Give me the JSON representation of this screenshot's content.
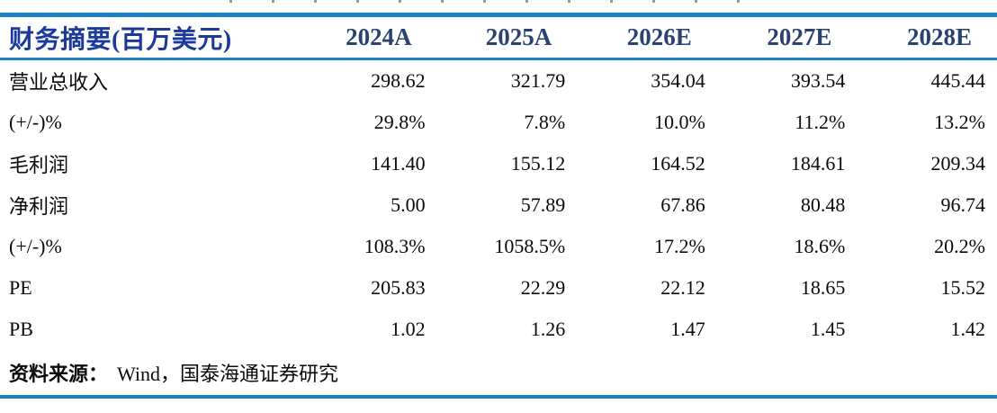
{
  "table": {
    "title": "财务摘要(百万美元)",
    "columns": [
      "2024A",
      "2025A",
      "2026E",
      "2027E",
      "2028E"
    ],
    "rows": [
      {
        "label": "营业总收入",
        "values": [
          "298.62",
          "321.79",
          "354.04",
          "393.54",
          "445.44"
        ]
      },
      {
        "label": "(+/-)%",
        "values": [
          "29.8%",
          "7.8%",
          "10.0%",
          "11.2%",
          "13.2%"
        ]
      },
      {
        "label": "毛利润",
        "values": [
          "141.40",
          "155.12",
          "164.52",
          "184.61",
          "209.34"
        ]
      },
      {
        "label": "净利润",
        "values": [
          "5.00",
          "57.89",
          "67.86",
          "80.48",
          "96.74"
        ]
      },
      {
        "label": "(+/-)%",
        "values": [
          "108.3%",
          "1058.5%",
          "17.2%",
          "18.6%",
          "20.2%"
        ]
      },
      {
        "label": "PE",
        "values": [
          "205.83",
          "22.29",
          "22.12",
          "18.65",
          "15.52"
        ]
      },
      {
        "label": "PB",
        "values": [
          "1.02",
          "1.26",
          "1.47",
          "1.45",
          "1.42"
        ]
      }
    ],
    "source_label": "资料来源：",
    "source_text": "Wind，国泰海通证券研究"
  },
  "colors": {
    "rule_blue": "#1880c2",
    "title_blue": "#1c3a9a",
    "year_navy": "#2a4270",
    "body_black": "#0a0a0a"
  }
}
